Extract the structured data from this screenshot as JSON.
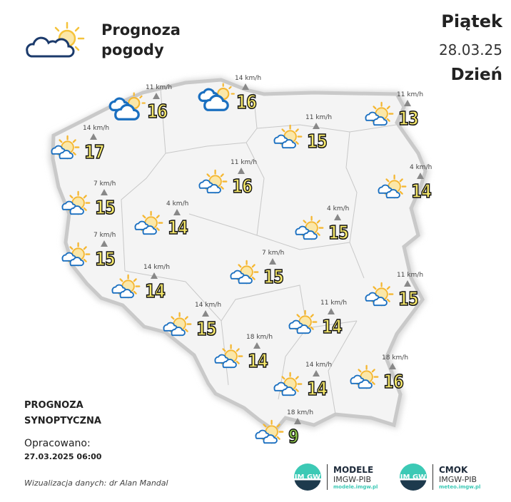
{
  "header": {
    "title_line1": "Prognoza",
    "title_line2": "pogody",
    "title_icon": "partly-cloudy-icon",
    "day": "Piątek",
    "date": "28.03.25",
    "period": "Dzień"
  },
  "colors": {
    "temp_fill": "#f7e96b",
    "temp_cold_fill": "#8bc34a",
    "cloud": "#1a6fc0",
    "sun": "#f5b731",
    "map_fill": "#f2f2f2"
  },
  "stations": [
    {
      "temp": "16",
      "wind": "11 km/h",
      "icon": "cloudy"
    },
    {
      "temp": "16",
      "wind": "14 km/h",
      "icon": "cloudy"
    },
    {
      "temp": "13",
      "wind": "11 km/h",
      "icon": "partly-cloudy"
    },
    {
      "temp": "15",
      "wind": "11 km/h",
      "icon": "partly-cloudy"
    },
    {
      "temp": "17",
      "wind": "14 km/h",
      "icon": "partly-cloudy"
    },
    {
      "temp": "16",
      "wind": "11 km/h",
      "icon": "partly-cloudy"
    },
    {
      "temp": "14",
      "wind": "4 km/h",
      "icon": "partly-cloudy"
    },
    {
      "temp": "15",
      "wind": "7 km/h",
      "icon": "partly-cloudy"
    },
    {
      "temp": "14",
      "wind": "4 km/h",
      "icon": "partly-cloudy"
    },
    {
      "temp": "15",
      "wind": "4 km/h",
      "icon": "partly-cloudy"
    },
    {
      "temp": "15",
      "wind": "7 km/h",
      "icon": "partly-cloudy"
    },
    {
      "temp": "15",
      "wind": "7 km/h",
      "icon": "partly-cloudy"
    },
    {
      "temp": "14",
      "wind": "14 km/h",
      "icon": "partly-cloudy"
    },
    {
      "temp": "15",
      "wind": "11 km/h",
      "icon": "partly-cloudy"
    },
    {
      "temp": "15",
      "wind": "14 km/h",
      "icon": "partly-cloudy"
    },
    {
      "temp": "14",
      "wind": "11 km/h",
      "icon": "partly-cloudy"
    },
    {
      "temp": "14",
      "wind": "18 km/h",
      "icon": "partly-cloudy"
    },
    {
      "temp": "16",
      "wind": "18 km/h",
      "icon": "partly-cloudy"
    },
    {
      "temp": "14",
      "wind": "14 km/h",
      "icon": "partly-cloudy"
    },
    {
      "temp": "9",
      "wind": "18 km/h",
      "icon": "partly-cloudy"
    }
  ],
  "info": {
    "label_line1": "PROGNOZA",
    "label_line2": "SYNOPTYCZNA",
    "prepared_label": "Opracowano:",
    "prepared_value": "27.03.2025 06:00",
    "credit": "Wizualizacja danych: dr Alan Mandal"
  },
  "logos": [
    {
      "mark": "IM GW",
      "name": "MODELE",
      "org": "IMGW-PIB",
      "url": "modele.imgw.pl"
    },
    {
      "mark": "IM GW",
      "name": "CMOK",
      "org": "IMGW-PIB",
      "url": "meteo.imgw.pl"
    }
  ]
}
